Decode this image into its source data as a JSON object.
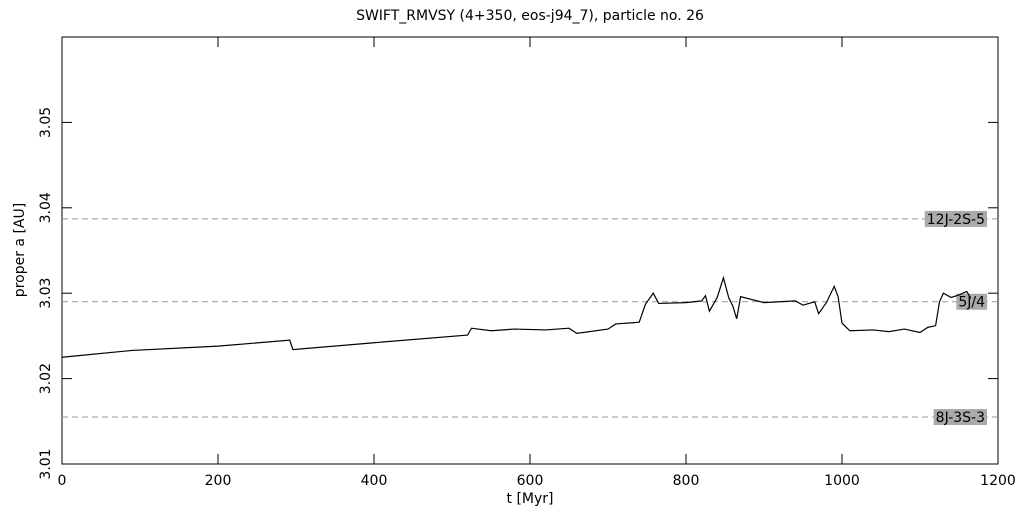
{
  "chart_data": {
    "type": "line",
    "title": "SWIFT_RMVSY (4+350, eos-j94_7), particle no. 26",
    "x_label": "t [Myr]",
    "y_label": "proper a [AU]",
    "xlim": [
      0,
      1200
    ],
    "ylim": [
      3.01,
      3.06
    ],
    "xticks": [
      0,
      200,
      400,
      600,
      800,
      1000,
      1200
    ],
    "yticks": [
      3.01,
      3.02,
      3.03,
      3.04,
      3.05
    ],
    "series": [
      {
        "name": "particle no. 26",
        "color": "#000000",
        "x": [
          0,
          90,
          200,
          292,
          296,
          400,
          520,
          525,
          550,
          580,
          620,
          650,
          660,
          700,
          710,
          740,
          748,
          758,
          765,
          800,
          820,
          825,
          830,
          840,
          848,
          855,
          860,
          865,
          870,
          900,
          940,
          950,
          965,
          970,
          980,
          990,
          995,
          1000,
          1010,
          1040,
          1060,
          1080,
          1100,
          1110,
          1120,
          1125,
          1130,
          1140,
          1150,
          1160,
          1165
        ],
        "values": [
          3.0225,
          3.0233,
          3.0238,
          3.0245,
          3.0234,
          3.0242,
          3.0251,
          3.0259,
          3.0256,
          3.0258,
          3.0257,
          3.0259,
          3.0253,
          3.0258,
          3.0264,
          3.0266,
          3.0287,
          3.03,
          3.0288,
          3.0289,
          3.0291,
          3.0297,
          3.0279,
          3.0295,
          3.0318,
          3.0294,
          3.0285,
          3.027,
          3.0296,
          3.0289,
          3.0291,
          3.0286,
          3.029,
          3.0276,
          3.0289,
          3.0308,
          3.0296,
          3.0265,
          3.0256,
          3.0257,
          3.0255,
          3.0258,
          3.0254,
          3.026,
          3.0262,
          3.029,
          3.03,
          3.0295,
          3.0298,
          3.0302,
          3.0294
        ]
      }
    ],
    "reference_lines": [
      {
        "label": "12J-2S-5",
        "value": 3.0387
      },
      {
        "label": "5J/4",
        "value": 3.029
      },
      {
        "label": "8J-3S-3",
        "value": 3.0155
      }
    ]
  }
}
